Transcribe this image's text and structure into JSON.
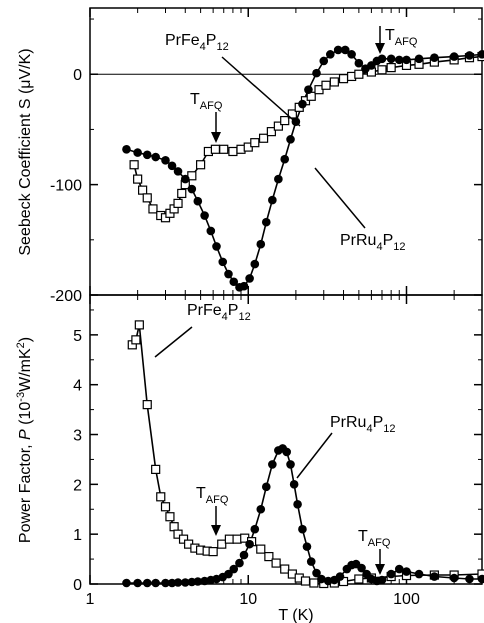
{
  "chart_data": [
    {
      "type": "scatter",
      "panel": "top",
      "ylabel_parts": [
        "Seebeck Coefficient S (",
        "μ",
        "V/K)"
      ],
      "xscale": "log",
      "xlim": [
        1,
        300
      ],
      "ylim": [
        -200,
        60
      ],
      "yticks": [
        0,
        -100,
        -200
      ],
      "ytick_labels": [
        "0",
        "-100",
        "-200"
      ],
      "zero_line": true,
      "series": [
        {
          "name": "PrFe4P12",
          "label_base": "PrFe",
          "label_sub1": "4",
          "label_mid": "P",
          "label_sub2": "12",
          "marker": "open-square",
          "x": [
            1.9,
            2.0,
            2.15,
            2.3,
            2.5,
            2.8,
            3.0,
            3.2,
            3.4,
            3.6,
            3.8,
            4.0,
            4.4,
            5.0,
            5.6,
            6.2,
            7.0,
            8.0,
            9.0,
            10.0,
            11.0,
            12.5,
            14.0,
            15.5,
            17.0,
            19.0,
            21.0,
            23.0,
            25.0,
            28.0,
            31.0,
            35.0,
            40.0,
            45.0,
            50.0,
            60.0,
            70.0,
            80.0,
            100.0,
            120.0,
            150.0,
            200.0,
            250.0,
            300.0
          ],
          "y": [
            -82,
            -95,
            -105,
            -112,
            -122,
            -128,
            -130,
            -126,
            -122,
            -117,
            -108,
            -100,
            -92,
            -82,
            -70,
            -68,
            -68,
            -70,
            -68,
            -66,
            -62,
            -58,
            -52,
            -47,
            -42,
            -36,
            -30,
            -24,
            -20,
            -14,
            -10,
            -7,
            -4,
            -2,
            0,
            2,
            4,
            6,
            8,
            9,
            11,
            13,
            15,
            16
          ]
        },
        {
          "name": "PrRu4P12",
          "label_base": "PrRu",
          "label_sub1": "4",
          "label_mid": "P",
          "label_sub2": "12",
          "marker": "filled-circle",
          "x": [
            1.7,
            2.0,
            2.3,
            2.6,
            3.0,
            3.3,
            3.6,
            4.0,
            4.4,
            4.8,
            5.3,
            5.8,
            6.3,
            6.9,
            7.5,
            8.1,
            8.8,
            9.4,
            10.2,
            11.0,
            12.0,
            13.0,
            14.2,
            15.5,
            17.0,
            18.5,
            20.0,
            22.0,
            24.0,
            27.0,
            30.0,
            33.0,
            37.0,
            41.0,
            45.0,
            50.0,
            55.0,
            60.0,
            65.0,
            70.0,
            80.0,
            90.0,
            100.0,
            120.0,
            150.0,
            200.0,
            250.0,
            300.0
          ],
          "y": [
            -68,
            -71,
            -73,
            -75,
            -78,
            -83,
            -88,
            -95,
            -104,
            -115,
            -128,
            -142,
            -156,
            -170,
            -181,
            -188,
            -193,
            -192,
            -185,
            -172,
            -154,
            -134,
            -114,
            -95,
            -77,
            -59,
            -43,
            -27,
            -14,
            1,
            12,
            18,
            22,
            22,
            18,
            10,
            5,
            8,
            12,
            14,
            14,
            13,
            13,
            14,
            15,
            16,
            17,
            18
          ]
        }
      ],
      "annotations": [
        {
          "text": "T",
          "sub": "AFQ",
          "series": "PrFe4P12"
        },
        {
          "text": "T",
          "sub": "AFQ",
          "series": "PrRu4P12"
        }
      ]
    },
    {
      "type": "scatter",
      "panel": "bottom",
      "ylabel_parts": [
        "Power Factor, ",
        "P",
        " (10",
        "-3",
        "W/mK",
        "2",
        ")"
      ],
      "xlabel": "T (K)",
      "xscale": "log",
      "xlim": [
        1,
        300
      ],
      "ylim": [
        0,
        5.8
      ],
      "yticks": [
        0,
        1,
        2,
        3,
        4,
        5
      ],
      "ytick_labels": [
        "0",
        "1",
        "2",
        "3",
        "4",
        "5"
      ],
      "xticks": [
        1,
        10,
        100
      ],
      "xtick_labels": [
        "1",
        "10",
        "100"
      ],
      "series": [
        {
          "name": "PrFe4P12",
          "label_base": "PrFe",
          "label_sub1": "4",
          "label_mid": "P",
          "label_sub2": "12",
          "marker": "open-square",
          "x": [
            1.85,
            1.95,
            2.05,
            2.3,
            2.6,
            2.8,
            3.0,
            3.2,
            3.4,
            3.6,
            3.9,
            4.2,
            4.6,
            5.0,
            5.5,
            6.0,
            6.8,
            7.6,
            8.5,
            9.5,
            10.5,
            12.0,
            13.5,
            15.0,
            17.0,
            19.0,
            21.0,
            23.0,
            26.0,
            30.0,
            35.0,
            40.0,
            50.0,
            60.0,
            80.0,
            100.0,
            150.0,
            200.0,
            300.0
          ],
          "y": [
            4.8,
            4.9,
            5.2,
            3.6,
            2.3,
            1.75,
            1.55,
            1.35,
            1.15,
            1.0,
            0.9,
            0.8,
            0.72,
            0.68,
            0.66,
            0.65,
            0.8,
            0.9,
            0.9,
            0.92,
            0.85,
            0.7,
            0.55,
            0.42,
            0.3,
            0.2,
            0.12,
            0.06,
            0.02,
            0.01,
            0.02,
            0.05,
            0.1,
            0.12,
            0.15,
            0.17,
            0.18,
            0.18,
            0.2
          ]
        },
        {
          "name": "PrRu4P12",
          "label_base": "PrRu",
          "label_sub1": "4",
          "label_mid": "P",
          "label_sub2": "12",
          "marker": "filled-circle",
          "x": [
            1.7,
            2.0,
            2.3,
            2.6,
            3.0,
            3.3,
            3.6,
            4.0,
            4.4,
            4.8,
            5.3,
            5.8,
            6.3,
            6.9,
            7.5,
            8.1,
            8.8,
            9.4,
            10.2,
            11.0,
            12.0,
            13.0,
            14.2,
            15.5,
            16.5,
            17.5,
            18.5,
            19.5,
            20.5,
            22.0,
            23.5,
            25.0,
            27.0,
            29.0,
            32.0,
            35.0,
            38.0,
            42.0,
            45.0,
            48.0,
            52.0,
            56.0,
            60.0,
            65.0,
            70.0,
            80.0,
            90.0,
            100.0,
            120.0,
            150.0,
            200.0,
            250.0,
            300.0
          ],
          "y": [
            0.02,
            0.02,
            0.02,
            0.02,
            0.02,
            0.02,
            0.03,
            0.03,
            0.04,
            0.05,
            0.06,
            0.08,
            0.1,
            0.14,
            0.2,
            0.3,
            0.42,
            0.58,
            0.8,
            1.1,
            1.5,
            1.95,
            2.4,
            2.68,
            2.72,
            2.65,
            2.4,
            2.0,
            1.6,
            1.1,
            0.75,
            0.45,
            0.22,
            0.1,
            0.06,
            0.08,
            0.15,
            0.3,
            0.38,
            0.4,
            0.32,
            0.2,
            0.1,
            0.06,
            0.08,
            0.2,
            0.3,
            0.25,
            0.2,
            0.15,
            0.12,
            0.1,
            0.1
          ]
        }
      ],
      "annotations": [
        {
          "text": "T",
          "sub": "AFQ",
          "series": "PrFe4P12"
        },
        {
          "text": "T",
          "sub": "AFQ",
          "series": "PrRu4P12"
        }
      ]
    }
  ]
}
